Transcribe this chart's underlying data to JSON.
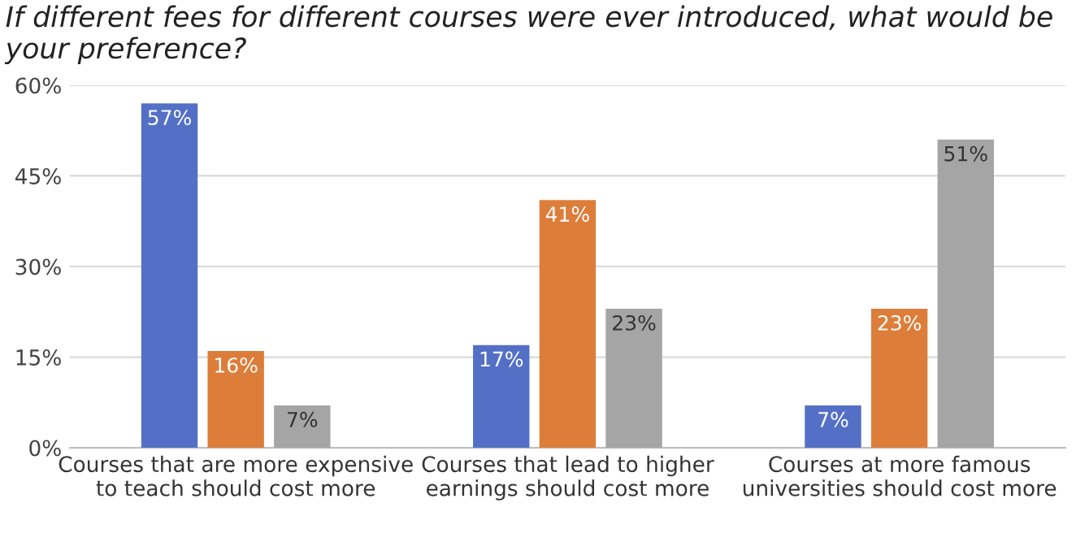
{
  "chart_data": {
    "type": "bar",
    "title": "If different fees for different courses were ever introduced, what would be your preference?",
    "categories": [
      "Courses that are more expensive\nto teach should cost more",
      "Courses that lead to higher\nearnings should cost more",
      "Courses at more famous\nuniversities should cost more"
    ],
    "series": [
      {
        "color": "#5470c6",
        "values": [
          57,
          17,
          7
        ],
        "value_labels": [
          "57%",
          "17%",
          "7%"
        ]
      },
      {
        "color": "#dd7d3a",
        "values": [
          16,
          41,
          23
        ],
        "value_labels": [
          "16%",
          "41%",
          "23%"
        ]
      },
      {
        "color": "#a5a5a5",
        "values": [
          7,
          23,
          51
        ],
        "value_labels": [
          "7%",
          "23%",
          "51%"
        ]
      }
    ],
    "ylim": [
      0,
      60
    ],
    "yticks": [
      {
        "value": 0,
        "label": "0%"
      },
      {
        "value": 15,
        "label": "15%"
      },
      {
        "value": 30,
        "label": "30%"
      },
      {
        "value": 45,
        "label": "45%"
      },
      {
        "value": 60,
        "label": "60%"
      }
    ],
    "grid": "y",
    "legend": false
  }
}
